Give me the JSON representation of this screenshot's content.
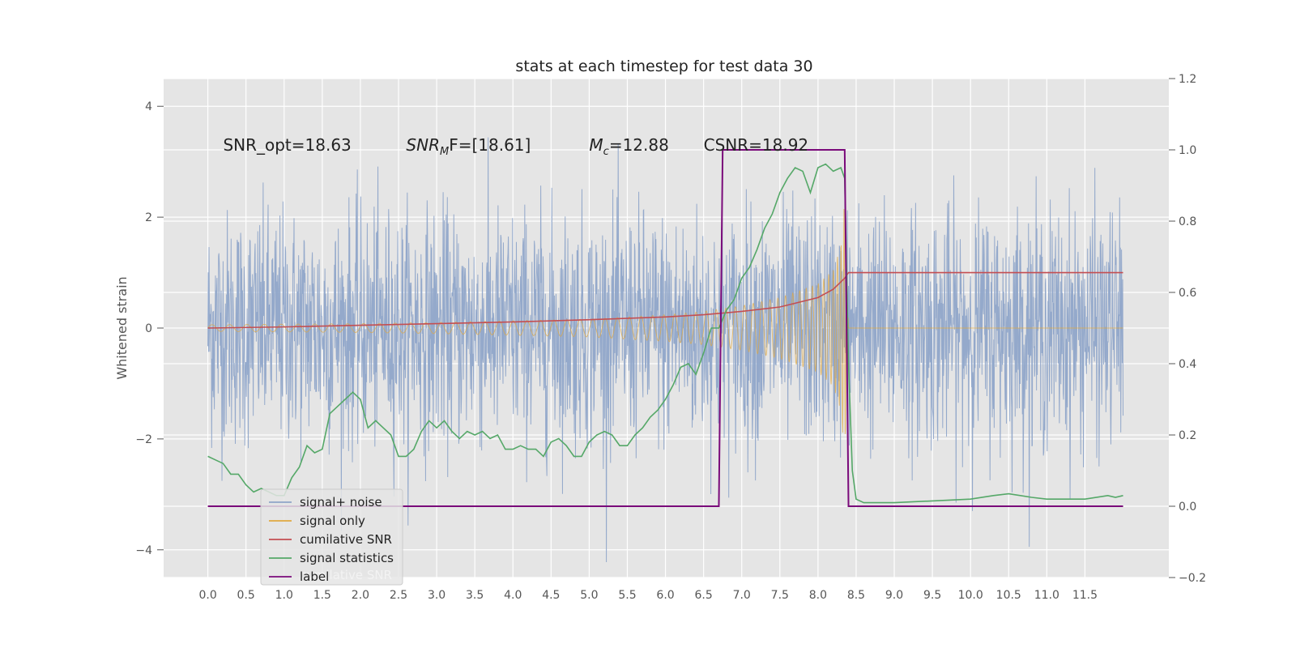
{
  "chart_data": {
    "type": "line",
    "title": "stats at each timestep for test data 30",
    "ylabel": "Whitened strain",
    "xlabel": "",
    "x_ticks": [
      "0.0",
      "0.5",
      "1.0",
      "1.5",
      "2.0",
      "2.5",
      "3.0",
      "3.5",
      "4.0",
      "4.5",
      "5.0",
      "5.5",
      "6.0",
      "6.5",
      "7.0",
      "7.5",
      "8.0",
      "8.5",
      "9.0",
      "9.5",
      "10.0",
      "10.5",
      "11.0",
      "11.5"
    ],
    "xlim": [
      -0.58,
      12.6
    ],
    "ylim_left": [
      -4.5,
      4.5
    ],
    "ylim_right": [
      -0.2,
      1.2
    ],
    "y_ticks_left": [
      -4,
      -2,
      0,
      2,
      4
    ],
    "y_ticks_right": [
      "−0.2",
      "0.0",
      "0.2",
      "0.4",
      "0.6",
      "0.8",
      "1.0",
      "1.2"
    ],
    "grid": true,
    "legend_position": "lower-left",
    "annotations": [
      {
        "text": "SNR_opt=18.63",
        "x": 0.2,
        "y": 3.2
      },
      {
        "text_main": "SNR",
        "text_sub": "M",
        "text_rest": "F=[18.61]",
        "x": 2.6,
        "y": 3.2
      },
      {
        "text_main": "M",
        "text_sub": "c",
        "text_rest": "=12.88",
        "x": 5.0,
        "y": 3.2
      },
      {
        "text": "CSNR=18.92",
        "x": 6.5,
        "y": 3.2
      }
    ],
    "series": [
      {
        "name": "signal+ noise",
        "axis": "left",
        "color": "#8fa5c9",
        "noise_sigma": 1.0,
        "x_range": [
          0.0,
          12.0
        ]
      },
      {
        "name": "signal only",
        "axis": "left",
        "color": "#e0a840",
        "envelope": {
          "x": [
            0.0,
            1.0,
            2.0,
            3.0,
            4.0,
            5.0,
            6.0,
            6.5,
            7.0,
            7.5,
            8.0,
            8.2,
            8.3,
            8.35,
            8.4,
            12.0
          ],
          "y": [
            0.06,
            0.07,
            0.08,
            0.1,
            0.13,
            0.16,
            0.24,
            0.3,
            0.4,
            0.55,
            0.8,
            1.05,
            1.5,
            2.4,
            0.0,
            0.0
          ]
        }
      },
      {
        "name": "cumilative SNR",
        "axis": "left",
        "color": "#c44e52",
        "x": [
          0.0,
          1.0,
          2.0,
          3.0,
          4.0,
          5.0,
          6.0,
          6.5,
          7.0,
          7.5,
          8.0,
          8.2,
          8.35,
          8.4,
          12.0
        ],
        "y": [
          0.0,
          0.02,
          0.05,
          0.08,
          0.11,
          0.15,
          0.2,
          0.24,
          0.3,
          0.38,
          0.55,
          0.7,
          0.9,
          1.0,
          1.0
        ]
      },
      {
        "name": "signal statistics",
        "axis": "right",
        "color": "#55a868",
        "x": [
          0.0,
          0.1,
          0.2,
          0.3,
          0.4,
          0.5,
          0.6,
          0.7,
          0.8,
          0.9,
          1.0,
          1.1,
          1.2,
          1.3,
          1.4,
          1.5,
          1.6,
          1.7,
          1.8,
          1.9,
          2.0,
          2.1,
          2.2,
          2.3,
          2.4,
          2.5,
          2.6,
          2.7,
          2.8,
          2.9,
          3.0,
          3.1,
          3.2,
          3.3,
          3.4,
          3.5,
          3.6,
          3.7,
          3.8,
          3.9,
          4.0,
          4.1,
          4.2,
          4.3,
          4.4,
          4.5,
          4.6,
          4.7,
          4.8,
          4.9,
          5.0,
          5.1,
          5.2,
          5.3,
          5.4,
          5.5,
          5.6,
          5.7,
          5.8,
          5.9,
          6.0,
          6.1,
          6.2,
          6.3,
          6.4,
          6.5,
          6.6,
          6.7,
          6.8,
          6.9,
          7.0,
          7.1,
          7.2,
          7.3,
          7.4,
          7.5,
          7.6,
          7.7,
          7.8,
          7.9,
          8.0,
          8.1,
          8.2,
          8.3,
          8.35,
          8.4,
          8.45,
          8.5,
          8.6,
          8.7,
          9.0,
          9.5,
          10.0,
          10.3,
          10.5,
          10.8,
          11.0,
          11.2,
          11.5,
          11.8,
          11.9,
          12.0
        ],
        "y": [
          0.14,
          0.13,
          0.12,
          0.09,
          0.09,
          0.06,
          0.04,
          0.05,
          0.04,
          0.03,
          0.03,
          0.08,
          0.11,
          0.17,
          0.15,
          0.16,
          0.26,
          0.28,
          0.3,
          0.32,
          0.3,
          0.22,
          0.24,
          0.22,
          0.2,
          0.14,
          0.14,
          0.16,
          0.21,
          0.24,
          0.22,
          0.24,
          0.21,
          0.19,
          0.21,
          0.2,
          0.21,
          0.19,
          0.2,
          0.16,
          0.16,
          0.17,
          0.16,
          0.16,
          0.14,
          0.18,
          0.19,
          0.17,
          0.14,
          0.14,
          0.18,
          0.2,
          0.21,
          0.2,
          0.17,
          0.17,
          0.2,
          0.22,
          0.25,
          0.27,
          0.3,
          0.34,
          0.39,
          0.4,
          0.37,
          0.43,
          0.5,
          0.5,
          0.55,
          0.58,
          0.64,
          0.67,
          0.72,
          0.78,
          0.82,
          0.88,
          0.92,
          0.95,
          0.94,
          0.88,
          0.95,
          0.96,
          0.94,
          0.95,
          0.92,
          0.4,
          0.1,
          0.02,
          0.01,
          0.01,
          0.01,
          0.015,
          0.02,
          0.03,
          0.035,
          0.025,
          0.02,
          0.02,
          0.02,
          0.03,
          0.025,
          0.03
        ]
      },
      {
        "name": "label",
        "axis": "right",
        "color": "#7a0a7a",
        "x": [
          0.0,
          6.7,
          6.75,
          8.35,
          8.4,
          12.0
        ],
        "y": [
          0.0,
          0.0,
          1.0,
          1.0,
          0.0,
          0.0
        ]
      }
    ],
    "legend_entries": [
      "signal+ noise",
      "signal only",
      "cumilative SNR",
      "signal statistics",
      "label"
    ],
    "legend_hidden_text": "cumilative SNR"
  }
}
